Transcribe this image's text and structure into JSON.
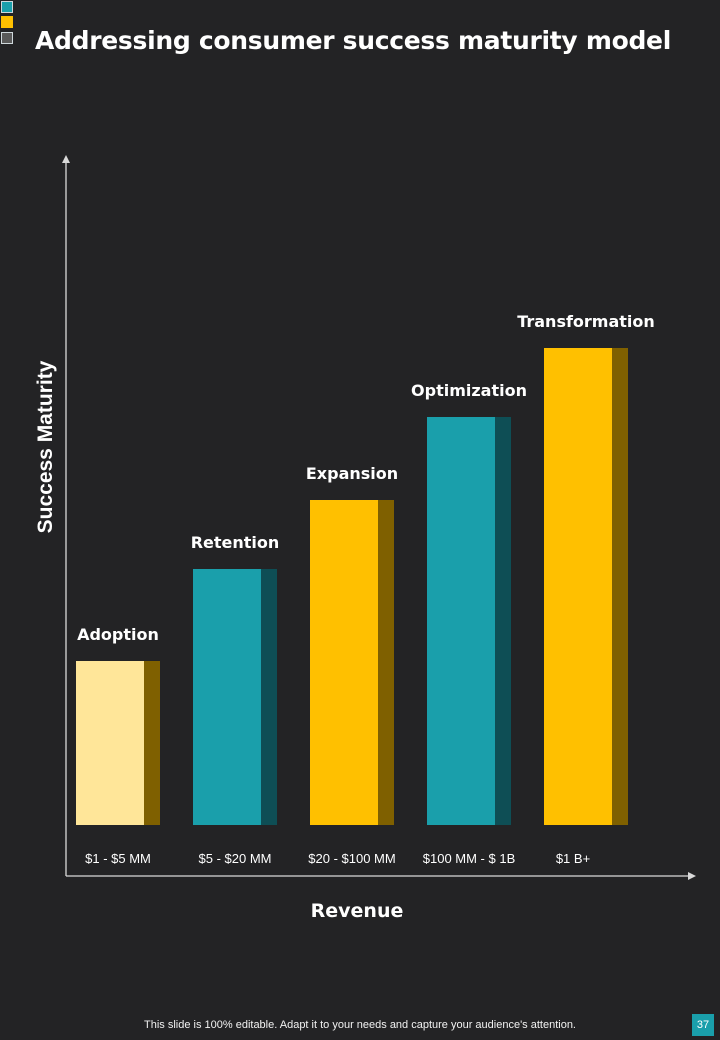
{
  "decor": {
    "square_colors": [
      "#1a9fab",
      "#ffc000",
      "#595959"
    ]
  },
  "slide": {
    "title": "Addressing consumer success maturity model",
    "footer": "This slide is 100% editable. Adapt it to your needs and capture your audience's attention.",
    "page_number": "37",
    "page_number_color": "#1a9fab"
  },
  "chart_data": {
    "type": "bar",
    "title": "",
    "xlabel": "Revenue",
    "ylabel": "Success Maturity",
    "categories": [
      "$1 - $5 MM",
      "$5 - $20 MM",
      "$20 - $100 MM",
      "$100 MM  - $ 1B",
      "$1 B+"
    ],
    "stage_labels": [
      "Adoption",
      "Retention",
      "Expansion",
      "Optimization",
      "Transformation"
    ],
    "values": [
      164,
      256,
      325,
      408,
      477
    ],
    "ylim": [
      0,
      670
    ],
    "bar_colors": [
      "#ffe699",
      "#1a9fab",
      "#ffc000",
      "#1a9fab",
      "#ffc000"
    ],
    "shade_colors": [
      "#7f6000",
      "#0e4e55",
      "#7f6000",
      "#0e4e55",
      "#7f6000"
    ],
    "axis_color": "#d9d9d9",
    "grid": false
  }
}
